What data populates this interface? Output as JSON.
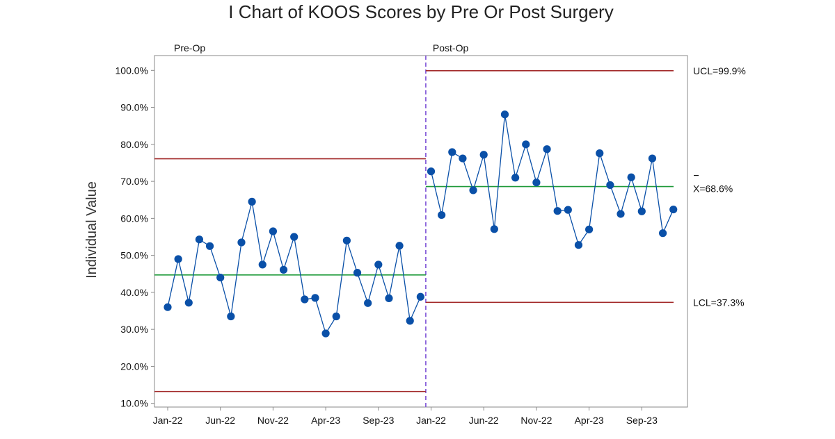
{
  "chart_data": {
    "type": "line",
    "title": "I Chart of KOOS Scores by Pre Or Post Surgery",
    "ylabel": "Individual Value",
    "xlabel": "",
    "ylim": [
      9,
      104
    ],
    "y_ticks": [
      "10.0%",
      "20.0%",
      "30.0%",
      "40.0%",
      "50.0%",
      "60.0%",
      "70.0%",
      "80.0%",
      "90.0%",
      "100.0%"
    ],
    "y_tick_values": [
      10,
      20,
      30,
      40,
      50,
      60,
      70,
      80,
      90,
      100
    ],
    "x_tick_labels": [
      "Jan-22",
      "Jun-22",
      "Nov-22",
      "Apr-23",
      "Sep-23",
      "Jan-22",
      "Jun-22",
      "Nov-22",
      "Apr-23",
      "Sep-23"
    ],
    "x_tick_indices": [
      0,
      5,
      10,
      15,
      20,
      25,
      30,
      35,
      40,
      45
    ],
    "grid": false,
    "colors": {
      "series": "#0a50a8",
      "center_line": "#1f9a3a",
      "limit_line": "#a32a2a",
      "phase_divider": "#7b4fd6",
      "axis": "#888888"
    },
    "phases": [
      {
        "label": "Pre-Op",
        "start_index": 0,
        "end_index": 24,
        "mean": 44.7,
        "ucl": 76.1,
        "lcl": 13.2,
        "values": [
          36.0,
          49.0,
          37.2,
          54.3,
          52.5,
          44.0,
          33.5,
          53.5,
          64.5,
          47.5,
          56.5,
          46.1,
          55.0,
          38.1,
          38.5,
          28.9,
          33.5,
          54.0,
          45.3,
          37.1,
          47.5,
          38.4,
          52.6,
          32.3,
          38.8
        ]
      },
      {
        "label": "Post-Op",
        "start_index": 25,
        "end_index": 48,
        "mean": 68.6,
        "ucl": 99.9,
        "lcl": 37.3,
        "mean_label": "X=68.6%",
        "ucl_label": "UCL=99.9%",
        "lcl_label": "LCL=37.3%",
        "values": [
          72.7,
          60.9,
          77.9,
          76.2,
          67.6,
          77.2,
          57.1,
          88.1,
          71.0,
          80.0,
          69.7,
          78.7,
          62.0,
          62.3,
          52.8,
          57.0,
          77.6,
          69.0,
          61.2,
          71.1,
          61.9,
          76.2,
          56.0,
          62.4
        ]
      }
    ]
  }
}
